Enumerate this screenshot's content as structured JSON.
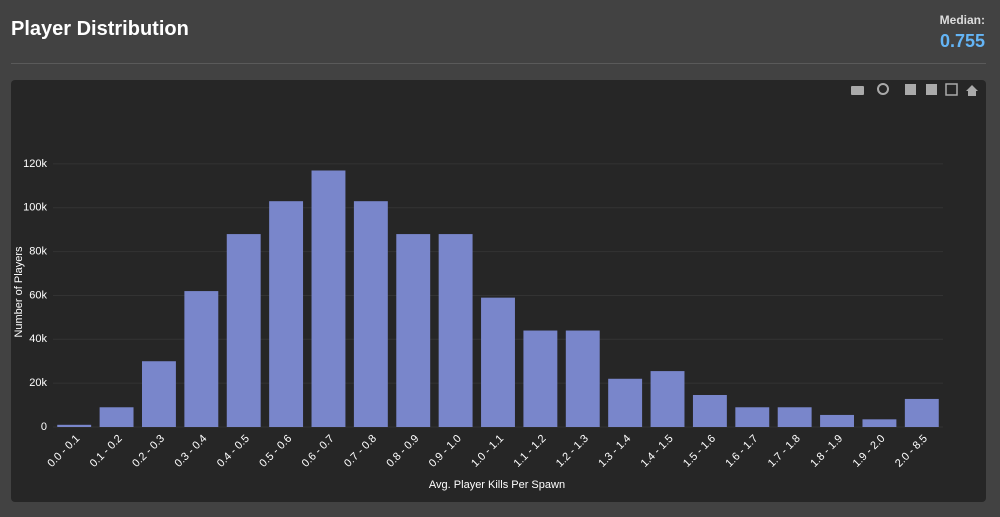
{
  "header": {
    "title": "Player Distribution",
    "median_label": "Median:",
    "median_value": "0.755"
  },
  "chart_data": {
    "type": "bar",
    "xlabel": "Avg. Player Kills Per Spawn",
    "ylabel": "Number of Players",
    "categories": [
      "0.0 - 0.1",
      "0.1 - 0.2",
      "0.2 - 0.3",
      "0.3 - 0.4",
      "0.4 - 0.5",
      "0.5 - 0.6",
      "0.6 - 0.7",
      "0.7 - 0.8",
      "0.8 - 0.9",
      "0.9 - 1.0",
      "1.0 - 1.1",
      "1.1 - 1.2",
      "1.2 - 1.3",
      "1.3 - 1.4",
      "1.4 - 1.5",
      "1.5 - 1.6",
      "1.6 - 1.7",
      "1.7 - 1.8",
      "1.8 - 1.9",
      "1.9 - 2.0",
      "2.0 - 8.5"
    ],
    "values": [
      1000,
      9000,
      30000,
      62000,
      88000,
      103000,
      117000,
      103000,
      88000,
      88000,
      59000,
      44000,
      44000,
      22000,
      25500,
      14600,
      9000,
      9000,
      5500,
      3500,
      12800
    ],
    "color": "#7986cb",
    "ylim": [
      0,
      130000
    ],
    "yticks": [
      0,
      {
        "value": 20000,
        "label": "20k"
      },
      {
        "value": 40000,
        "label": "40k"
      },
      {
        "value": 60000,
        "label": "60k"
      },
      {
        "value": 80000,
        "label": "80k"
      },
      {
        "value": 100000,
        "label": "100k"
      },
      {
        "value": 120000,
        "label": "120k"
      }
    ],
    "grid": true
  }
}
